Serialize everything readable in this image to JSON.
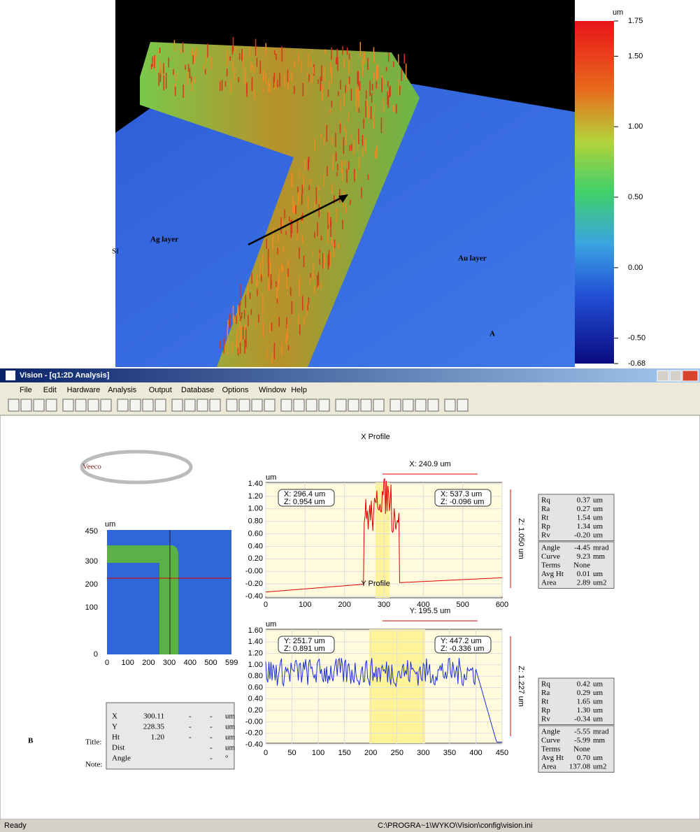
{
  "panel_a": {
    "label": "A",
    "si_label": "SI",
    "ag_label": "Ag layer",
    "au_label": "Au layer",
    "colorbar": {
      "unit": "um",
      "ticks": [
        {
          "value": 1.75,
          "label": "1.75"
        },
        {
          "value": 1.5,
          "label": "1.50"
        },
        {
          "value": 1,
          "label": "1.00"
        },
        {
          "value": 0.5,
          "label": "0.50"
        },
        {
          "value": 0,
          "label": "0.00"
        },
        {
          "value": -0.5,
          "label": "-0.50"
        },
        {
          "value": -0.68,
          "label": "-0.68"
        }
      ],
      "lim": [
        -0.68,
        1.75
      ]
    }
  },
  "panel_b": {
    "label": "B",
    "title_label": "Title:",
    "note_label": "Note:",
    "logo": "Veeco"
  },
  "window": {
    "title": "Vision - [q1:2D Analysis]",
    "menu": [
      "File",
      "Edit",
      "Hardware",
      "Analysis",
      "Output",
      "Database",
      "Options",
      "Window",
      "Help"
    ],
    "status": "Ready",
    "path": "C:\\PROGRA~1\\WYKO\\Vision\\config\\vision.ini"
  },
  "map": {
    "unit": "um",
    "yticks": [
      "450",
      "300",
      "200",
      "100",
      "0"
    ],
    "xticks": [
      "0",
      "100",
      "200",
      "300",
      "400",
      "500",
      "599"
    ]
  },
  "cursor_table": [
    [
      "X",
      "300.11",
      "-",
      "-",
      "um"
    ],
    [
      "Y",
      "228.35",
      "-",
      "-",
      "um"
    ],
    [
      "Ht",
      "1.20",
      "-",
      "-",
      "um"
    ],
    [
      "Dist",
      "",
      "",
      "-",
      "um"
    ],
    [
      "Angle",
      "",
      "",
      "-",
      "°"
    ]
  ],
  "x_profile": {
    "title": "X Profile",
    "unit": "um",
    "span": "X: 240.9 um",
    "height": "Z: 1.050 um",
    "callout1": [
      "X: 296.4 um",
      "Z: 0.954 um"
    ],
    "callout2": [
      "X: 537.3 um",
      "Z: -0.096 um"
    ],
    "yticks": [
      "1.40",
      "1.20",
      "1.00",
      "0.80",
      "0.60",
      "0.40",
      "0.20",
      "-0.00",
      "-0.20",
      "-0.40"
    ],
    "xticks": [
      "0",
      "100",
      "200",
      "300",
      "400",
      "500",
      "600"
    ],
    "stats1": [
      [
        "Rq",
        "0.37",
        "um"
      ],
      [
        "Ra",
        "0.27",
        "um"
      ],
      [
        "Rt",
        "1.54",
        "um"
      ],
      [
        "Rp",
        "1.34",
        "um"
      ],
      [
        "Rv",
        "-0.20",
        "um"
      ]
    ],
    "stats2": [
      [
        "Angle",
        "-4.45",
        "mrad"
      ],
      [
        "Curve",
        "9.23",
        "mm"
      ],
      [
        "Terms",
        "None",
        ""
      ],
      [
        "Avg Ht",
        "0.01",
        "um"
      ],
      [
        "Area",
        "2.89",
        "um2"
      ]
    ]
  },
  "y_profile": {
    "title": "Y Profile",
    "unit": "um",
    "span": "Y: 195.5 um",
    "height": "Z: 1.227 um",
    "callout1": [
      "Y: 251.7 um",
      "Z: 0.891 um"
    ],
    "callout2": [
      "Y: 447.2 um",
      "Z: -0.336 um"
    ],
    "yticks": [
      "1.60",
      "1.40",
      "1.20",
      "1.00",
      "0.80",
      "0.60",
      "0.40",
      "0.20",
      "-0.00",
      "-0.20",
      "-0.40"
    ],
    "xticks": [
      "0",
      "50",
      "100",
      "150",
      "200",
      "250",
      "300",
      "350",
      "400",
      "450"
    ],
    "stats1": [
      [
        "Rq",
        "0.42",
        "um"
      ],
      [
        "Ra",
        "0.29",
        "um"
      ],
      [
        "Rt",
        "1.65",
        "um"
      ],
      [
        "Rp",
        "1.30",
        "um"
      ],
      [
        "Rv",
        "-0.34",
        "um"
      ]
    ],
    "stats2": [
      [
        "Angle",
        "-5.55",
        "mrad"
      ],
      [
        "Curve",
        "-5.99",
        "mm"
      ],
      [
        "Terms",
        "None",
        ""
      ],
      [
        "Avg Ht",
        "0.70",
        "um"
      ],
      [
        "Area",
        "137.08",
        "um2"
      ]
    ]
  }
}
